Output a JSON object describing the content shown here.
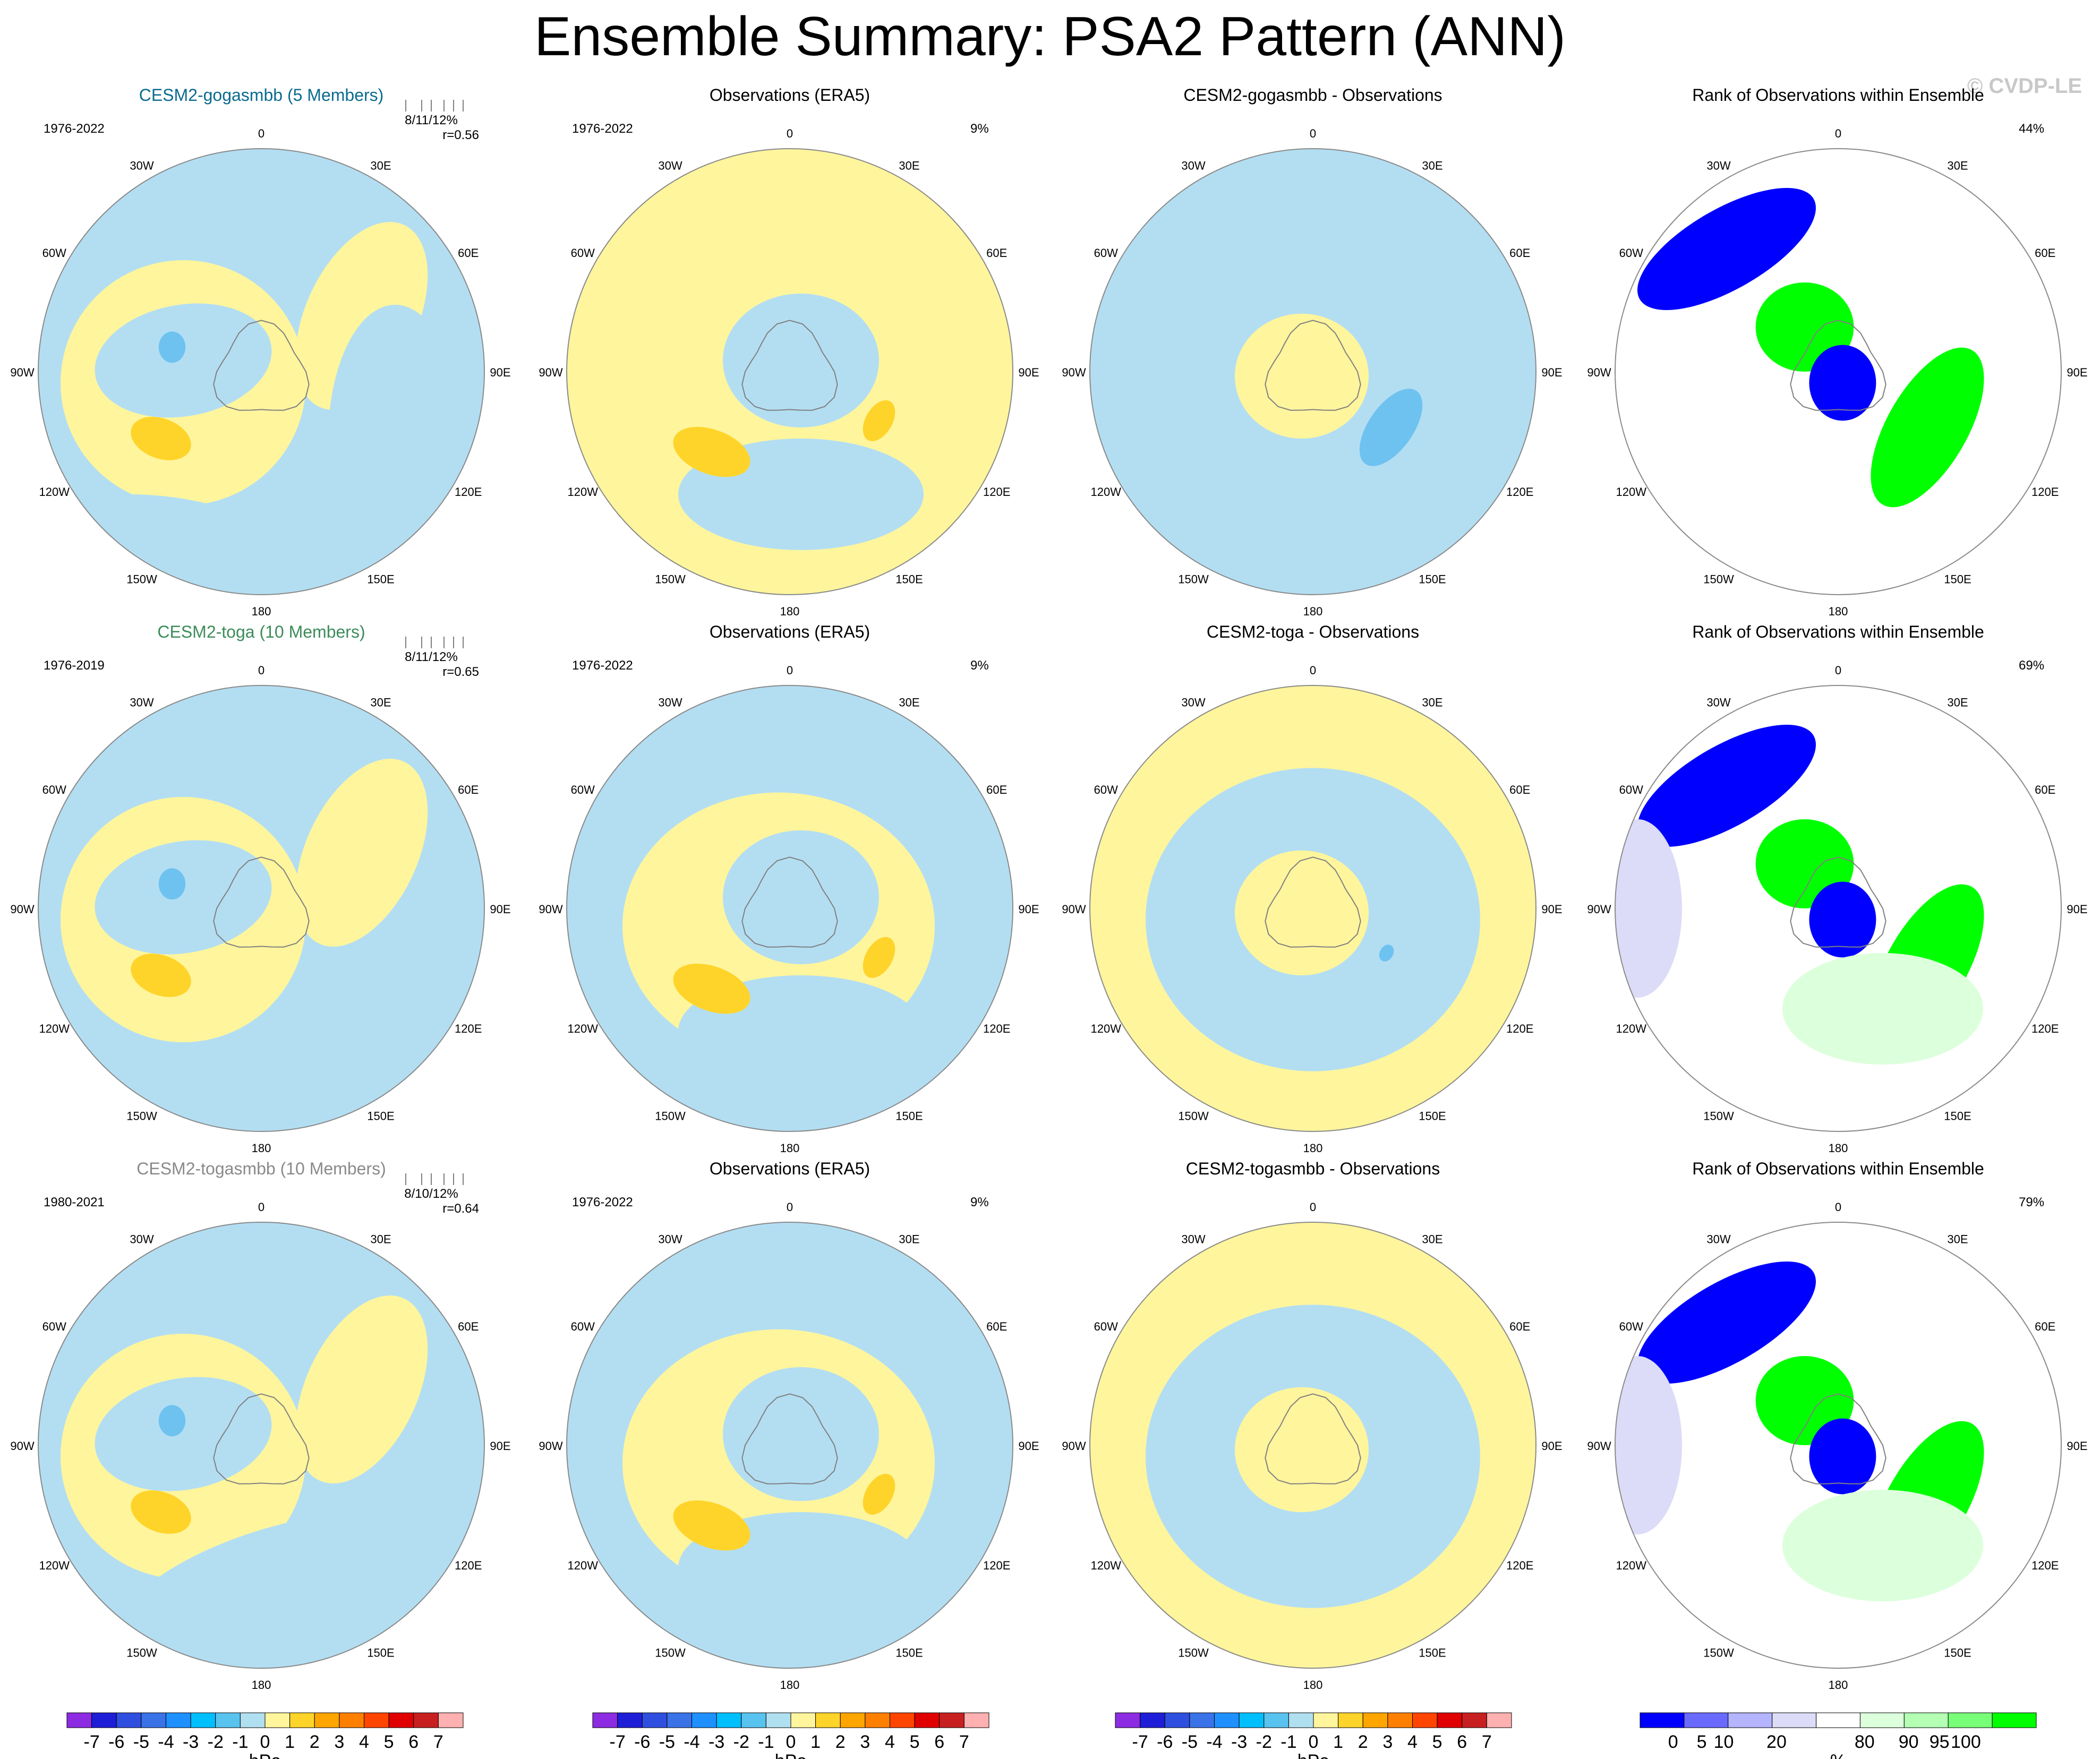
{
  "figure": {
    "title": "Ensemble Summary: PSA2 Pattern (ANN)",
    "watermark": "© CVDP-LE"
  },
  "chart_data": [
    {
      "type": "heatmap",
      "projection": "south-polar-stereographic",
      "variable": "PSA2 pattern",
      "units": "hPa",
      "title": "CESM2-gogasmbb (5 Members)",
      "period": "1976-2022",
      "summary": {
        "stats": "8/11/12%",
        "r": "r=0.56"
      },
      "lon_labels": [
        "0",
        "30E",
        "60E",
        "90E",
        "120E",
        "150E",
        "180",
        "150W",
        "120W",
        "90W",
        "60W",
        "30W"
      ]
    },
    {
      "type": "heatmap",
      "projection": "south-polar-stereographic",
      "variable": "PSA2 pattern",
      "units": "hPa",
      "title": "Observations (ERA5)",
      "period": "1976-2022",
      "pct": "9%",
      "lon_labels": [
        "0",
        "30E",
        "60E",
        "90E",
        "120E",
        "150E",
        "180",
        "150W",
        "120W",
        "90W",
        "60W",
        "30W"
      ]
    },
    {
      "type": "heatmap",
      "projection": "south-polar-stereographic",
      "variable": "difference",
      "units": "hPa",
      "title": "CESM2-gogasmbb - Observations",
      "lon_labels": [
        "0",
        "30E",
        "60E",
        "90E",
        "120E",
        "150E",
        "180",
        "150W",
        "120W",
        "90W",
        "60W",
        "30W"
      ]
    },
    {
      "type": "heatmap",
      "projection": "south-polar-stereographic",
      "variable": "rank",
      "units": "%",
      "title": "Rank of Observations within Ensemble",
      "pct": "44%",
      "lon_labels": [
        "0",
        "30E",
        "60E",
        "90E",
        "120E",
        "150E",
        "180",
        "150W",
        "120W",
        "90W",
        "60W",
        "30W"
      ]
    },
    {
      "type": "heatmap",
      "projection": "south-polar-stereographic",
      "variable": "PSA2 pattern",
      "units": "hPa",
      "title": "CESM2-toga (10 Members)",
      "period": "1976-2019",
      "summary": {
        "stats": "8/11/12%",
        "r": "r=0.65"
      },
      "lon_labels": [
        "0",
        "30E",
        "60E",
        "90E",
        "120E",
        "150E",
        "180",
        "150W",
        "120W",
        "90W",
        "60W",
        "30W"
      ]
    },
    {
      "type": "heatmap",
      "projection": "south-polar-stereographic",
      "variable": "PSA2 pattern",
      "units": "hPa",
      "title": "Observations (ERA5)",
      "period": "1976-2022",
      "pct": "9%",
      "lon_labels": [
        "0",
        "30E",
        "60E",
        "90E",
        "120E",
        "150E",
        "180",
        "150W",
        "120W",
        "90W",
        "60W",
        "30W"
      ]
    },
    {
      "type": "heatmap",
      "projection": "south-polar-stereographic",
      "variable": "difference",
      "units": "hPa",
      "title": "CESM2-toga - Observations",
      "lon_labels": [
        "0",
        "30E",
        "60E",
        "90E",
        "120E",
        "150E",
        "180",
        "150W",
        "120W",
        "90W",
        "60W",
        "30W"
      ]
    },
    {
      "type": "heatmap",
      "projection": "south-polar-stereographic",
      "variable": "rank",
      "units": "%",
      "title": "Rank of Observations within Ensemble",
      "pct": "69%",
      "lon_labels": [
        "0",
        "30E",
        "60E",
        "90E",
        "120E",
        "150E",
        "180",
        "150W",
        "120W",
        "90W",
        "60W",
        "30W"
      ]
    },
    {
      "type": "heatmap",
      "projection": "south-polar-stereographic",
      "variable": "PSA2 pattern",
      "units": "hPa",
      "title": "CESM2-togasmbb (10 Members)",
      "period": "1980-2021",
      "summary": {
        "stats": "8/10/12%",
        "r": "r=0.64"
      },
      "lon_labels": [
        "0",
        "30E",
        "60E",
        "90E",
        "120E",
        "150E",
        "180",
        "150W",
        "120W",
        "90W",
        "60W",
        "30W"
      ]
    },
    {
      "type": "heatmap",
      "projection": "south-polar-stereographic",
      "variable": "PSA2 pattern",
      "units": "hPa",
      "title": "Observations (ERA5)",
      "period": "1976-2022",
      "pct": "9%",
      "lon_labels": [
        "0",
        "30E",
        "60E",
        "90E",
        "120E",
        "150E",
        "180",
        "150W",
        "120W",
        "90W",
        "60W",
        "30W"
      ]
    },
    {
      "type": "heatmap",
      "projection": "south-polar-stereographic",
      "variable": "difference",
      "units": "hPa",
      "title": "CESM2-togasmbb - Observations",
      "lon_labels": [
        "0",
        "30E",
        "60E",
        "90E",
        "120E",
        "150E",
        "180",
        "150W",
        "120W",
        "90W",
        "60W",
        "30W"
      ]
    },
    {
      "type": "heatmap",
      "projection": "south-polar-stereographic",
      "variable": "rank",
      "units": "%",
      "title": "Rank of Observations within Ensemble",
      "pct": "79%",
      "lon_labels": [
        "0",
        "30E",
        "60E",
        "90E",
        "120E",
        "150E",
        "180",
        "150W",
        "120W",
        "90W",
        "60W",
        "30W"
      ]
    }
  ],
  "colorbars": {
    "hpa": {
      "unit": "hPa",
      "labels": [
        "-7",
        "-6",
        "-5",
        "-4",
        "-3",
        "-2",
        "-1",
        "0",
        "1",
        "2",
        "3",
        "4",
        "5",
        "6",
        "7"
      ],
      "colors": [
        "#8c2be2",
        "#1e1ed8",
        "#2f4fe0",
        "#3a72e8",
        "#1e90ff",
        "#00bfff",
        "#59c3ef",
        "#b0dff0",
        "#fff59d",
        "#ffd42a",
        "#ffa500",
        "#ff7f00",
        "#ff4500",
        "#e00000",
        "#c82020",
        "#ffb0b0"
      ]
    },
    "pct": {
      "unit": "%",
      "labels": [
        "0",
        "5",
        "10",
        "20",
        "80",
        "90",
        "95",
        "100"
      ],
      "colors": [
        "#0000ff",
        "#6a6aff",
        "#b4b4ff",
        "#dcdcf8",
        "#ffffff",
        "#dcffdc",
        "#b4ffb4",
        "#78ff78",
        "#00ff00"
      ]
    }
  }
}
